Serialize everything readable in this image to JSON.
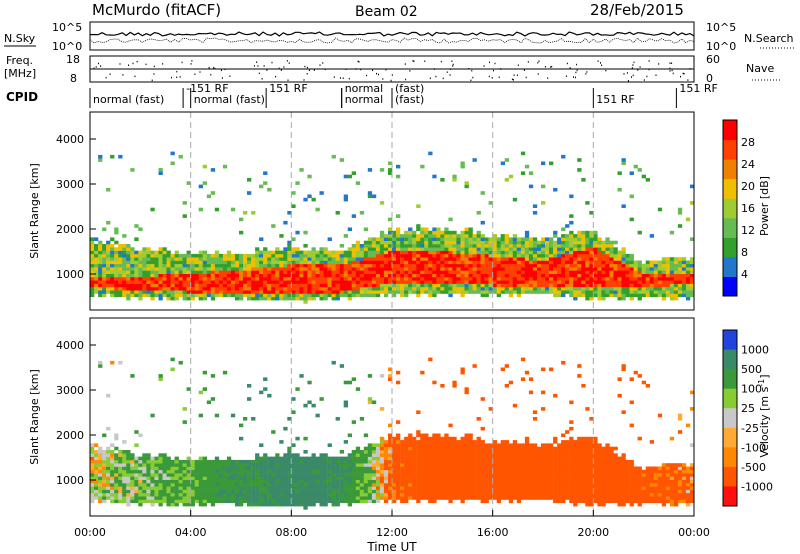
{
  "header": {
    "station": "McMurdo (fitACF)",
    "beam": "Beam 02",
    "date": "28/Feb/2015"
  },
  "strip_labels": {
    "nsky": "N.Sky",
    "nsearch": "N.Search",
    "freq_line1": "Freq.",
    "freq_line2": "[MHz]",
    "nave": "Nave",
    "cpid": "CPID",
    "noise_top": "10^5",
    "noise_bottom": "10^0",
    "freq_top": "18",
    "freq_bottom": "8",
    "nave_top": "60",
    "nave_bottom": "0",
    "nsearch_top": "10^5",
    "nsearch_bottom": "10^0"
  },
  "cpid_segments": [
    {
      "start_hr": 0.0,
      "label": "normal (fast)"
    },
    {
      "start_hr": 3.7,
      "label": "-151 RF"
    },
    {
      "start_hr": 4.0,
      "label": "normal (fast)"
    },
    {
      "start_hr": 7.0,
      "label": "151 RF"
    },
    {
      "start_hr": 10.0,
      "label": "normal"
    },
    {
      "start_hr": 10.0,
      "label": "normal"
    },
    {
      "start_hr": 12.0,
      "label": "(fast)"
    },
    {
      "start_hr": 12.0,
      "label": "(fast)"
    },
    {
      "start_hr": 20.0,
      "label": "151 RF"
    },
    {
      "start_hr": 23.3,
      "label": "151 RF"
    }
  ],
  "colors": {
    "power_scale": [
      "#0000ff",
      "#2277cc",
      "#33a02c",
      "#66bb55",
      "#a0cc33",
      "#f0c000",
      "#f08000",
      "#ff4000",
      "#ff0000"
    ],
    "velocity_scale": [
      "#ff1010",
      "#ff5500",
      "#ff8800",
      "#ffaa33",
      "#c8c8c8",
      "#88cc33",
      "#3a9a3a",
      "#3a8a6a",
      "#2244dd"
    ]
  },
  "chart_data": [
    {
      "type": "heatmap",
      "name": "power",
      "ylabel": "Slant Range [km]",
      "yticks": [
        1000,
        2000,
        3000,
        4000
      ],
      "ylim": [
        200,
        4600
      ],
      "xlim_hours": [
        0,
        24
      ],
      "colorbar_label": "Power [dB]",
      "colorbar_ticks": [
        "4",
        "8",
        "12",
        "16",
        "20",
        "24",
        "28"
      ],
      "colorbar_range": [
        0,
        30
      ],
      "echo_band": [
        {
          "hour": 0,
          "lower_km": 600,
          "upper_km": 1700,
          "core_lower_km": 700,
          "core_upper_km": 900
        },
        {
          "hour": 2,
          "lower_km": 500,
          "upper_km": 1500,
          "core_lower_km": 650,
          "core_upper_km": 950
        },
        {
          "hour": 4,
          "lower_km": 500,
          "upper_km": 1400,
          "core_lower_km": 600,
          "core_upper_km": 1000
        },
        {
          "hour": 6,
          "lower_km": 500,
          "upper_km": 1400,
          "core_lower_km": 600,
          "core_upper_km": 1100
        },
        {
          "hour": 8,
          "lower_km": 450,
          "upper_km": 1500,
          "core_lower_km": 550,
          "core_upper_km": 1200
        },
        {
          "hour": 10,
          "lower_km": 500,
          "upper_km": 1500,
          "core_lower_km": 600,
          "core_upper_km": 1200
        },
        {
          "hour": 12,
          "lower_km": 600,
          "upper_km": 1900,
          "core_lower_km": 800,
          "core_upper_km": 1500
        },
        {
          "hour": 14,
          "lower_km": 600,
          "upper_km": 1900,
          "core_lower_km": 800,
          "core_upper_km": 1500
        },
        {
          "hour": 16,
          "lower_km": 600,
          "upper_km": 1800,
          "core_lower_km": 750,
          "core_upper_km": 1400
        },
        {
          "hour": 18,
          "lower_km": 600,
          "upper_km": 1700,
          "core_lower_km": 700,
          "core_upper_km": 1300
        },
        {
          "hour": 20,
          "lower_km": 500,
          "upper_km": 1900,
          "core_lower_km": 700,
          "core_upper_km": 1600
        },
        {
          "hour": 22,
          "lower_km": 500,
          "upper_km": 1200,
          "core_lower_km": 700,
          "core_upper_km": 1000
        },
        {
          "hour": 24,
          "lower_km": 500,
          "upper_km": 1300,
          "core_lower_km": 800,
          "core_upper_km": 1000
        }
      ]
    },
    {
      "type": "heatmap",
      "name": "velocity",
      "ylabel": "Slant Range [km]",
      "yticks": [
        1000,
        2000,
        3000,
        4000
      ],
      "ylim": [
        200,
        4600
      ],
      "xlim_hours": [
        0,
        24
      ],
      "xticks": [
        "00:00",
        "04:00",
        "08:00",
        "12:00",
        "16:00",
        "20:00",
        "00:00"
      ],
      "xlabel": "Time UT",
      "colorbar_label": "Velocity [m s^-1]",
      "colorbar_ticks": [
        "1000",
        "500",
        "100",
        "25",
        "-25",
        "-100",
        "-500",
        "-1000"
      ],
      "velocity_by_hour": [
        {
          "hour": 0,
          "value": 0
        },
        {
          "hour": 2,
          "value": 80
        },
        {
          "hour": 4,
          "value": 150
        },
        {
          "hour": 6,
          "value": 300
        },
        {
          "hour": 8,
          "value": 400
        },
        {
          "hour": 10,
          "value": 350
        },
        {
          "hour": 12,
          "value": -150
        },
        {
          "hour": 14,
          "value": -300
        },
        {
          "hour": 16,
          "value": -350
        },
        {
          "hour": 18,
          "value": -300
        },
        {
          "hour": 20,
          "value": -300
        },
        {
          "hour": 22,
          "value": -200
        },
        {
          "hour": 24,
          "value": -100
        }
      ]
    }
  ]
}
